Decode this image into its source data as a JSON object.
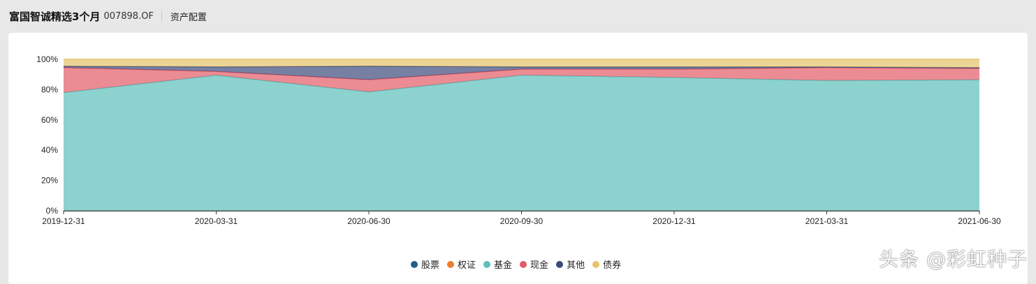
{
  "header": {
    "fund_name": "富国智诚精选3个月",
    "fund_code": "007898.OF",
    "tab_label": "资产配置"
  },
  "watermark": "头条 @彩虹种子",
  "chart_data": {
    "type": "area",
    "stacked": true,
    "title": "",
    "xlabel": "",
    "ylabel": "",
    "ylim": [
      0,
      100
    ],
    "y_unit": "%",
    "y_ticks": [
      0,
      20,
      40,
      60,
      80,
      100
    ],
    "x": [
      "2019-12-31",
      "2020-03-31",
      "2020-06-30",
      "2020-09-30",
      "2020-12-31",
      "2021-03-31",
      "2021-06-30"
    ],
    "legend_position": "bottom-center",
    "series": [
      {
        "name": "股票",
        "color": "#1f5f8b",
        "values": [
          0,
          0,
          0,
          0,
          0,
          0,
          0
        ]
      },
      {
        "name": "权证",
        "color": "#ee7d31",
        "values": [
          0,
          0,
          0,
          0,
          0,
          0,
          0
        ]
      },
      {
        "name": "基金",
        "color": "#5bbfba",
        "values": [
          78,
          89.5,
          78.5,
          89.5,
          88,
          86,
          86.5
        ]
      },
      {
        "name": "现金",
        "color": "#e35b66",
        "values": [
          16.5,
          2.5,
          8,
          4,
          5.5,
          8.5,
          7.5
        ]
      },
      {
        "name": "其他",
        "color": "#3c4a7c",
        "values": [
          1,
          3,
          9,
          1.5,
          1.5,
          0.5,
          0.5
        ]
      },
      {
        "name": "债券",
        "color": "#e6c36a",
        "values": [
          4.5,
          5,
          4.5,
          5,
          5,
          5,
          5.5
        ]
      }
    ]
  }
}
